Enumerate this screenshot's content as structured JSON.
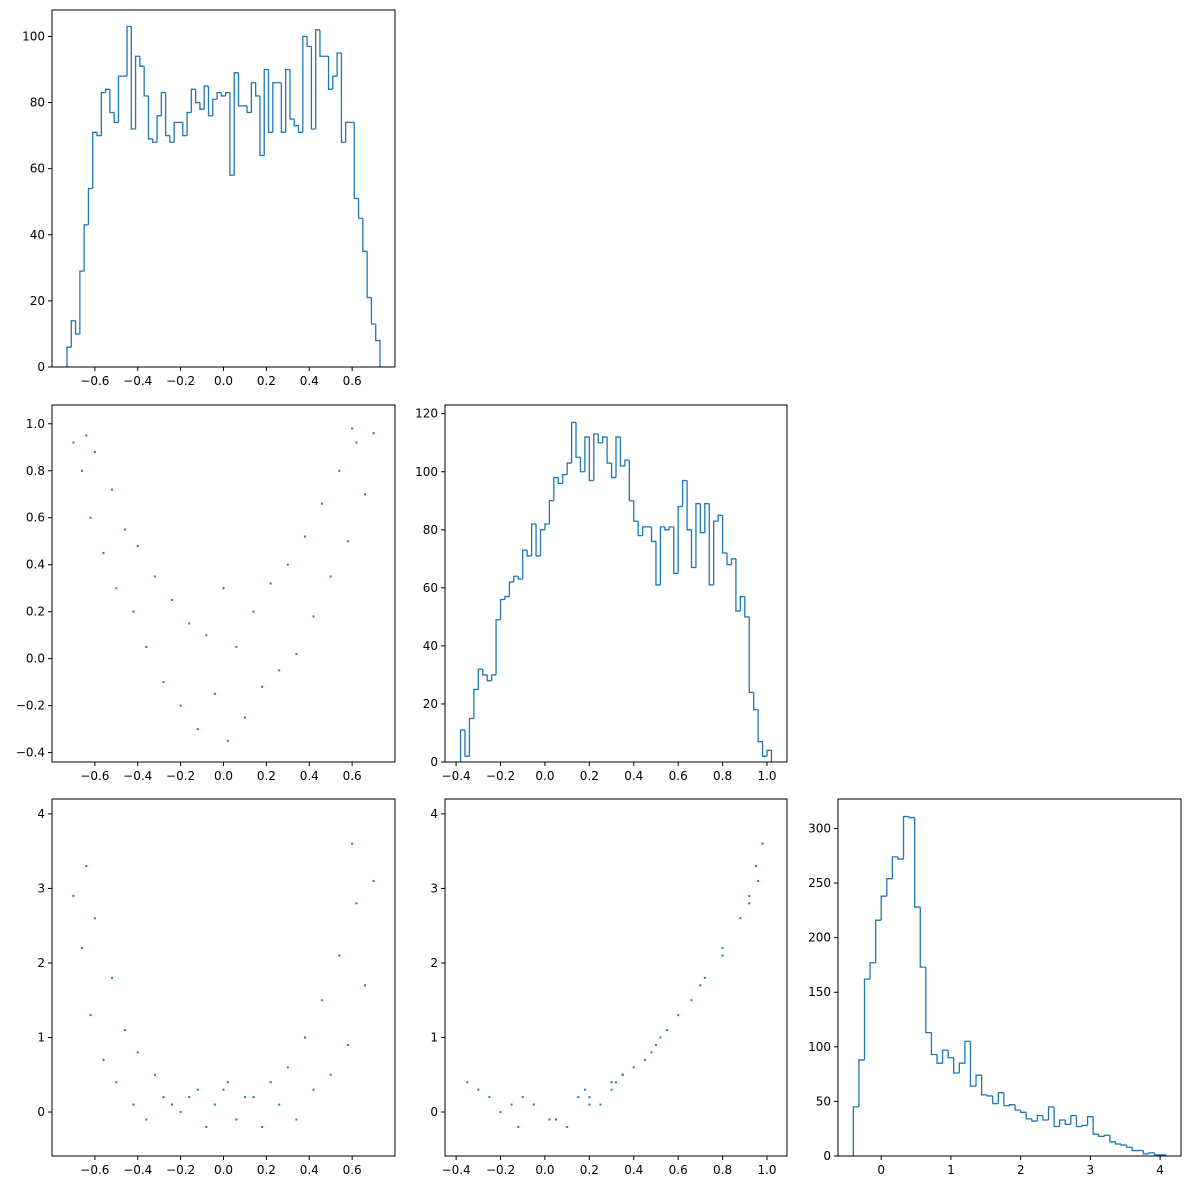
{
  "chart_data": [
    {
      "type": "histogram",
      "color": "#1f77b4",
      "bins": [
        -0.73,
        -0.71,
        -0.69,
        -0.67,
        -0.65,
        -0.63,
        -0.61,
        -0.59,
        -0.57,
        -0.55,
        -0.53,
        -0.51,
        -0.49,
        -0.47,
        -0.45,
        -0.43,
        -0.41,
        -0.39,
        -0.37,
        -0.35,
        -0.33,
        -0.31,
        -0.29,
        -0.27,
        -0.25,
        -0.23,
        -0.21,
        -0.19,
        -0.17,
        -0.15,
        -0.13,
        -0.11,
        -0.09,
        -0.07,
        -0.05,
        -0.03,
        -0.01,
        0.01,
        0.03,
        0.05,
        0.07,
        0.09,
        0.11,
        0.13,
        0.15,
        0.17,
        0.19,
        0.21,
        0.23,
        0.25,
        0.27,
        0.29,
        0.31,
        0.33,
        0.35,
        0.37,
        0.39,
        0.41,
        0.43,
        0.45,
        0.47,
        0.49,
        0.51,
        0.53,
        0.55,
        0.57,
        0.59,
        0.61,
        0.63,
        0.65,
        0.67,
        0.69,
        0.71,
        0.73
      ],
      "counts": [
        6,
        14,
        10,
        29,
        43,
        54,
        71,
        70,
        83,
        84,
        77,
        74,
        88,
        88,
        103,
        72,
        94,
        91,
        82,
        69,
        68,
        76,
        83,
        70,
        68,
        74,
        74,
        70,
        77,
        84,
        80,
        78,
        85,
        76,
        81,
        83,
        82,
        83,
        58,
        89,
        79,
        79,
        77,
        86,
        82,
        64,
        90,
        71,
        86,
        86,
        71,
        90,
        75,
        73,
        71,
        100,
        97,
        72,
        102,
        94,
        94,
        84,
        88,
        95,
        68,
        74,
        74,
        51,
        45,
        35,
        21,
        13,
        8
      ],
      "xlim": [
        -0.8,
        0.8
      ],
      "ylim": [
        0,
        108
      ],
      "xticks": [
        {
          "value": -0.6,
          "label": "−0.6"
        },
        {
          "value": -0.4,
          "label": "−0.4"
        },
        {
          "value": -0.2,
          "label": "−0.2"
        },
        {
          "value": 0,
          "label": "0.0"
        },
        {
          "value": 0.2,
          "label": "0.2"
        },
        {
          "value": 0.4,
          "label": "0.4"
        },
        {
          "value": 0.6,
          "label": "0.6"
        }
      ],
      "yticks": [
        0,
        20,
        40,
        60,
        80,
        100
      ]
    },
    {
      "type": "scatter",
      "color": "#1f77b4",
      "x": [
        -0.7,
        -0.66,
        -0.62,
        -0.6,
        -0.56,
        -0.52,
        -0.5,
        -0.46,
        -0.42,
        -0.4,
        -0.36,
        -0.32,
        -0.28,
        -0.24,
        -0.2,
        -0.16,
        -0.12,
        -0.08,
        -0.04,
        0,
        0.02,
        0.06,
        0.1,
        0.14,
        0.18,
        0.22,
        0.26,
        0.3,
        0.34,
        0.38,
        0.42,
        0.46,
        0.5,
        0.54,
        0.58,
        0.62,
        0.66,
        0.7,
        -0.64,
        0.6
      ],
      "y": [
        0.92,
        0.8,
        0.6,
        0.88,
        0.45,
        0.72,
        0.3,
        0.55,
        0.2,
        0.48,
        0.05,
        0.35,
        -0.1,
        0.25,
        -0.2,
        0.15,
        -0.3,
        0.1,
        -0.15,
        0.3,
        -0.35,
        0.05,
        -0.25,
        0.2,
        -0.12,
        0.32,
        -0.05,
        0.4,
        0.02,
        0.52,
        0.18,
        0.66,
        0.35,
        0.8,
        0.5,
        0.92,
        0.7,
        0.96,
        0.95,
        0.98
      ],
      "xlim": [
        -0.8,
        0.8
      ],
      "ylim": [
        -0.44,
        1.08
      ],
      "xticks": [
        {
          "value": -0.6,
          "label": "−0.6"
        },
        {
          "value": -0.4,
          "label": "−0.4"
        },
        {
          "value": -0.2,
          "label": "−0.2"
        },
        {
          "value": 0,
          "label": "0.0"
        },
        {
          "value": 0.2,
          "label": "0.2"
        },
        {
          "value": 0.4,
          "label": "0.4"
        },
        {
          "value": 0.6,
          "label": "0.6"
        }
      ],
      "yticks": [
        {
          "value": -0.4,
          "label": "−0.4"
        },
        {
          "value": -0.2,
          "label": "−0.2"
        },
        {
          "value": 0,
          "label": "0.0"
        },
        {
          "value": 0.2,
          "label": "0.2"
        },
        {
          "value": 0.4,
          "label": "0.4"
        },
        {
          "value": 0.6,
          "label": "0.6"
        },
        {
          "value": 0.8,
          "label": "0.8"
        },
        {
          "value": 1,
          "label": "1.0"
        }
      ]
    },
    {
      "type": "histogram",
      "color": "#1f77b4",
      "bins": [
        -0.38,
        -0.36,
        -0.34,
        -0.32,
        -0.3,
        -0.28,
        -0.26,
        -0.24,
        -0.22,
        -0.2,
        -0.18,
        -0.16,
        -0.14,
        -0.12,
        -0.1,
        -0.08,
        -0.06,
        -0.04,
        -0.02,
        0,
        0.02,
        0.04,
        0.06,
        0.08,
        0.1,
        0.12,
        0.14,
        0.16,
        0.18,
        0.2,
        0.22,
        0.24,
        0.26,
        0.28,
        0.3,
        0.32,
        0.34,
        0.36,
        0.38,
        0.4,
        0.42,
        0.44,
        0.46,
        0.48,
        0.5,
        0.52,
        0.54,
        0.56,
        0.58,
        0.6,
        0.62,
        0.64,
        0.66,
        0.68,
        0.7,
        0.72,
        0.74,
        0.76,
        0.78,
        0.8,
        0.82,
        0.84,
        0.86,
        0.88,
        0.9,
        0.92,
        0.94,
        0.96,
        0.98,
        1,
        1.02
      ],
      "counts": [
        11,
        2,
        15,
        25,
        32,
        30,
        28,
        30,
        49,
        56,
        57,
        62,
        64,
        63,
        73,
        71,
        82,
        71,
        80,
        82,
        90,
        98,
        96,
        99,
        103,
        117,
        105,
        100,
        112,
        97,
        113,
        110,
        112,
        103,
        98,
        112,
        102,
        104,
        90,
        83,
        78,
        81,
        81,
        76,
        61,
        81,
        80,
        81,
        65,
        88,
        97,
        80,
        67,
        89,
        79,
        89,
        61,
        83,
        85,
        72,
        68,
        70,
        52,
        57,
        50,
        24,
        18,
        7,
        2,
        4
      ],
      "xlim": [
        -0.45,
        1.09
      ],
      "ylim": [
        0,
        123
      ],
      "xticks": [
        {
          "value": -0.4,
          "label": "−0.4"
        },
        {
          "value": -0.2,
          "label": "−0.2"
        },
        {
          "value": 0,
          "label": "0.0"
        },
        {
          "value": 0.2,
          "label": "0.2"
        },
        {
          "value": 0.4,
          "label": "0.4"
        },
        {
          "value": 0.6,
          "label": "0.6"
        },
        {
          "value": 0.8,
          "label": "0.8"
        },
        {
          "value": 1,
          "label": "1.0"
        }
      ],
      "yticks": [
        0,
        20,
        40,
        60,
        80,
        100,
        120
      ]
    },
    {
      "type": "scatter",
      "color": "#1f77b4",
      "x": [
        -0.7,
        -0.66,
        -0.62,
        -0.6,
        -0.56,
        -0.52,
        -0.5,
        -0.46,
        -0.42,
        -0.4,
        -0.36,
        -0.32,
        -0.28,
        -0.24,
        -0.2,
        -0.16,
        -0.12,
        -0.08,
        -0.04,
        0,
        0.02,
        0.06,
        0.1,
        0.14,
        0.18,
        0.22,
        0.26,
        0.3,
        0.34,
        0.38,
        0.42,
        0.46,
        0.5,
        0.54,
        0.58,
        0.62,
        0.66,
        0.7,
        -0.64,
        0.6
      ],
      "y": [
        2.9,
        2.2,
        1.3,
        2.6,
        0.7,
        1.8,
        0.4,
        1.1,
        0.1,
        0.8,
        -0.1,
        0.5,
        0.2,
        0.1,
        0,
        0.2,
        0.3,
        -0.2,
        0.1,
        0.3,
        0.4,
        -0.1,
        0.2,
        0.2,
        -0.2,
        0.4,
        0.1,
        0.6,
        -0.1,
        1,
        0.3,
        1.5,
        0.5,
        2.1,
        0.9,
        2.8,
        1.7,
        3.1,
        3.3,
        3.6
      ],
      "xlim": [
        -0.8,
        0.8
      ],
      "ylim": [
        -0.59,
        4.2
      ],
      "xticks": [
        {
          "value": -0.6,
          "label": "−0.6"
        },
        {
          "value": -0.4,
          "label": "−0.4"
        },
        {
          "value": -0.2,
          "label": "−0.2"
        },
        {
          "value": 0,
          "label": "0.0"
        },
        {
          "value": 0.2,
          "label": "0.2"
        },
        {
          "value": 0.4,
          "label": "0.4"
        },
        {
          "value": 0.6,
          "label": "0.6"
        }
      ],
      "yticks": [
        0,
        1,
        2,
        3,
        4
      ]
    },
    {
      "type": "scatter",
      "color": "#1f77b4",
      "x": [
        0.92,
        0.8,
        0.6,
        0.88,
        0.45,
        0.72,
        0.3,
        0.55,
        0.2,
        0.48,
        0.05,
        0.35,
        -0.1,
        0.25,
        -0.2,
        0.15,
        -0.3,
        0.1,
        -0.15,
        0.3,
        -0.35,
        0.05,
        -0.25,
        0.2,
        -0.12,
        0.32,
        -0.05,
        0.4,
        0.02,
        0.52,
        0.18,
        0.66,
        0.35,
        0.8,
        0.5,
        0.92,
        0.7,
        0.96,
        0.95,
        0.98
      ],
      "y": [
        2.9,
        2.2,
        1.3,
        2.6,
        0.7,
        1.8,
        0.4,
        1.1,
        0.1,
        0.8,
        -0.1,
        0.5,
        0.2,
        0.1,
        0,
        0.2,
        0.3,
        -0.2,
        0.1,
        0.3,
        0.4,
        -0.1,
        0.2,
        0.2,
        -0.2,
        0.4,
        0.1,
        0.6,
        -0.1,
        1,
        0.3,
        1.5,
        0.5,
        2.1,
        0.9,
        2.8,
        1.7,
        3.1,
        3.3,
        3.6
      ],
      "xlim": [
        -0.45,
        1.09
      ],
      "ylim": [
        -0.59,
        4.2
      ],
      "xticks": [
        {
          "value": -0.4,
          "label": "−0.4"
        },
        {
          "value": -0.2,
          "label": "−0.2"
        },
        {
          "value": 0,
          "label": "0.0"
        },
        {
          "value": 0.2,
          "label": "0.2"
        },
        {
          "value": 0.4,
          "label": "0.4"
        },
        {
          "value": 0.6,
          "label": "0.6"
        },
        {
          "value": 0.8,
          "label": "0.8"
        },
        {
          "value": 1,
          "label": "1.0"
        }
      ],
      "yticks": [
        0,
        1,
        2,
        3,
        4
      ]
    },
    {
      "type": "histogram",
      "color": "#1f77b4",
      "bins": [
        -0.4,
        -0.32,
        -0.24,
        -0.16,
        -0.08,
        0,
        0.08,
        0.16,
        0.24,
        0.32,
        0.4,
        0.48,
        0.56,
        0.64,
        0.72,
        0.8,
        0.88,
        0.96,
        1.04,
        1.12,
        1.2,
        1.28,
        1.36,
        1.44,
        1.52,
        1.6,
        1.68,
        1.76,
        1.84,
        1.92,
        2,
        2.08,
        2.16,
        2.24,
        2.32,
        2.4,
        2.48,
        2.56,
        2.64,
        2.72,
        2.8,
        2.88,
        2.96,
        3.04,
        3.12,
        3.2,
        3.28,
        3.36,
        3.44,
        3.52,
        3.6,
        3.68,
        3.76,
        3.84,
        3.92,
        4,
        4.08
      ],
      "counts": [
        45,
        88,
        162,
        177,
        216,
        238,
        254,
        274,
        272,
        311,
        310,
        228,
        173,
        113,
        93,
        85,
        97,
        90,
        76,
        85,
        105,
        64,
        74,
        56,
        55,
        48,
        58,
        46,
        47,
        42,
        40,
        34,
        32,
        37,
        33,
        45,
        27,
        33,
        29,
        37,
        27,
        28,
        36,
        20,
        18,
        19,
        13,
        11,
        10,
        8,
        5,
        5,
        2,
        3,
        1,
        1
      ],
      "xlim": [
        -0.62,
        4.3
      ],
      "ylim": [
        0,
        327
      ],
      "xticks": [
        0,
        1,
        2,
        3,
        4
      ],
      "yticks": [
        0,
        50,
        100,
        150,
        200,
        250,
        300
      ]
    }
  ]
}
